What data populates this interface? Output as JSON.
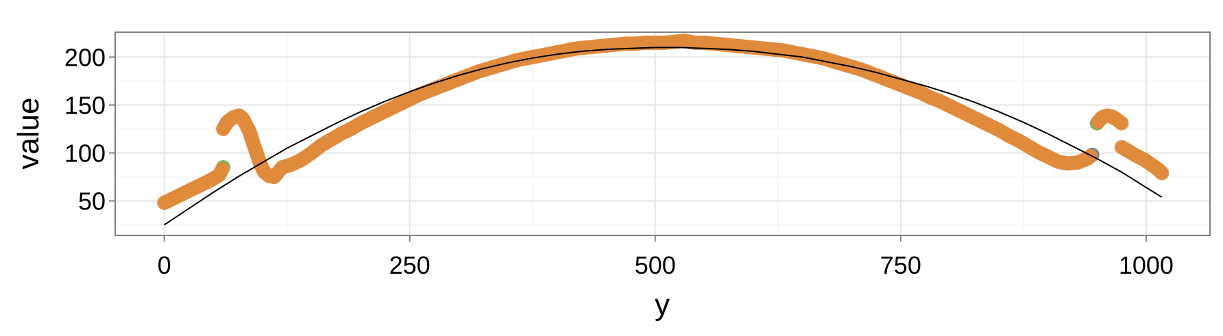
{
  "colors": {
    "panel_background": "#ffffff",
    "panel_border": "#7f7f7f",
    "grid_major": "#e6e6e6",
    "grid_minor": "#f4f4f4",
    "fit_line": "#000000",
    "point_main": "#e08a3c",
    "point_accents": [
      "#5b9bd5",
      "#6aaa45",
      "#c9302c",
      "#f2a2a8",
      "#c9dd78",
      "#9ecf8f",
      "#4a6fa5"
    ]
  },
  "chart_data": {
    "type": "scatter",
    "title": "",
    "xlabel": "y",
    "ylabel": "value",
    "xlim": [
      -50,
      1065
    ],
    "ylim": [
      14,
      226
    ],
    "x_ticks": [
      0,
      250,
      500,
      750,
      1000
    ],
    "x_tick_labels": [
      "0",
      "250",
      "500",
      "750",
      "1000"
    ],
    "y_ticks": [
      50,
      100,
      150,
      200
    ],
    "y_tick_labels": [
      "50",
      "100",
      "150",
      "200"
    ],
    "grid": true,
    "legend": "none",
    "points": [
      {
        "x": 0,
        "y": 48
      },
      {
        "x": 8,
        "y": 52
      },
      {
        "x": 16,
        "y": 56
      },
      {
        "x": 24,
        "y": 60
      },
      {
        "x": 32,
        "y": 64
      },
      {
        "x": 40,
        "y": 68
      },
      {
        "x": 48,
        "y": 72
      },
      {
        "x": 56,
        "y": 77
      },
      {
        "x": 60,
        "y": 85,
        "color": "#6aaa45"
      },
      {
        "x": 60,
        "y": 125
      },
      {
        "x": 64,
        "y": 132
      },
      {
        "x": 70,
        "y": 137
      },
      {
        "x": 76,
        "y": 139
      },
      {
        "x": 80,
        "y": 136,
        "color": "#f2a2a8"
      },
      {
        "x": 84,
        "y": 128,
        "color": "#c9dd78"
      },
      {
        "x": 87,
        "y": 122,
        "color": "#f2a2a8"
      },
      {
        "x": 89,
        "y": 115,
        "color": "#c9302c"
      },
      {
        "x": 92,
        "y": 106,
        "color": "#9ecf8f"
      },
      {
        "x": 95,
        "y": 97,
        "color": "#6aaa45"
      },
      {
        "x": 98,
        "y": 88
      },
      {
        "x": 102,
        "y": 80
      },
      {
        "x": 107,
        "y": 76
      },
      {
        "x": 112,
        "y": 75
      },
      {
        "x": 120,
        "y": 85
      },
      {
        "x": 130,
        "y": 88
      },
      {
        "x": 140,
        "y": 93
      },
      {
        "x": 150,
        "y": 100
      },
      {
        "x": 160,
        "y": 108
      },
      {
        "x": 170,
        "y": 114
      },
      {
        "x": 180,
        "y": 120
      },
      {
        "x": 190,
        "y": 125
      },
      {
        "x": 200,
        "y": 131
      },
      {
        "x": 210,
        "y": 136
      },
      {
        "x": 220,
        "y": 141
      },
      {
        "x": 230,
        "y": 146
      },
      {
        "x": 240,
        "y": 151
      },
      {
        "x": 250,
        "y": 156
      },
      {
        "x": 260,
        "y": 161
      },
      {
        "x": 270,
        "y": 165
      },
      {
        "x": 280,
        "y": 169
      },
      {
        "x": 290,
        "y": 173
      },
      {
        "x": 300,
        "y": 177
      },
      {
        "x": 310,
        "y": 181
      },
      {
        "x": 320,
        "y": 185
      },
      {
        "x": 330,
        "y": 188
      },
      {
        "x": 340,
        "y": 191
      },
      {
        "x": 350,
        "y": 194
      },
      {
        "x": 360,
        "y": 197
      },
      {
        "x": 370,
        "y": 199
      },
      {
        "x": 380,
        "y": 201
      },
      {
        "x": 390,
        "y": 203
      },
      {
        "x": 400,
        "y": 205
      },
      {
        "x": 410,
        "y": 207
      },
      {
        "x": 420,
        "y": 209
      },
      {
        "x": 430,
        "y": 210
      },
      {
        "x": 440,
        "y": 211
      },
      {
        "x": 450,
        "y": 212
      },
      {
        "x": 460,
        "y": 213
      },
      {
        "x": 470,
        "y": 214
      },
      {
        "x": 480,
        "y": 214
      },
      {
        "x": 490,
        "y": 215
      },
      {
        "x": 500,
        "y": 215
      },
      {
        "x": 510,
        "y": 215
      },
      {
        "x": 520,
        "y": 216
      },
      {
        "x": 530,
        "y": 217
      },
      {
        "x": 540,
        "y": 215
      },
      {
        "x": 550,
        "y": 215
      },
      {
        "x": 560,
        "y": 214
      },
      {
        "x": 570,
        "y": 213
      },
      {
        "x": 580,
        "y": 212
      },
      {
        "x": 590,
        "y": 211
      },
      {
        "x": 600,
        "y": 210
      },
      {
        "x": 610,
        "y": 209
      },
      {
        "x": 620,
        "y": 208
      },
      {
        "x": 630,
        "y": 207
      },
      {
        "x": 640,
        "y": 205
      },
      {
        "x": 650,
        "y": 203
      },
      {
        "x": 660,
        "y": 201
      },
      {
        "x": 670,
        "y": 199
      },
      {
        "x": 680,
        "y": 196
      },
      {
        "x": 690,
        "y": 193
      },
      {
        "x": 700,
        "y": 190
      },
      {
        "x": 710,
        "y": 187
      },
      {
        "x": 720,
        "y": 183
      },
      {
        "x": 730,
        "y": 179
      },
      {
        "x": 740,
        "y": 175
      },
      {
        "x": 750,
        "y": 171
      },
      {
        "x": 760,
        "y": 167
      },
      {
        "x": 770,
        "y": 163
      },
      {
        "x": 780,
        "y": 158
      },
      {
        "x": 790,
        "y": 154
      },
      {
        "x": 800,
        "y": 149
      },
      {
        "x": 810,
        "y": 144
      },
      {
        "x": 820,
        "y": 139
      },
      {
        "x": 830,
        "y": 134
      },
      {
        "x": 840,
        "y": 129
      },
      {
        "x": 850,
        "y": 124
      },
      {
        "x": 860,
        "y": 118
      },
      {
        "x": 870,
        "y": 113
      },
      {
        "x": 880,
        "y": 107
      },
      {
        "x": 890,
        "y": 101
      },
      {
        "x": 900,
        "y": 96
      },
      {
        "x": 910,
        "y": 91
      },
      {
        "x": 920,
        "y": 89
      },
      {
        "x": 930,
        "y": 90
      },
      {
        "x": 940,
        "y": 94
      },
      {
        "x": 945,
        "y": 98,
        "color": "#4a6fa5"
      },
      {
        "x": 950,
        "y": 131,
        "color": "#6aaa45"
      },
      {
        "x": 955,
        "y": 137
      },
      {
        "x": 960,
        "y": 139
      },
      {
        "x": 965,
        "y": 138
      },
      {
        "x": 970,
        "y": 135
      },
      {
        "x": 975,
        "y": 131
      },
      {
        "x": 975,
        "y": 106
      },
      {
        "x": 982,
        "y": 102
      },
      {
        "x": 990,
        "y": 97
      },
      {
        "x": 998,
        "y": 93
      },
      {
        "x": 1005,
        "y": 88
      },
      {
        "x": 1012,
        "y": 83
      },
      {
        "x": 1016,
        "y": 79
      }
    ],
    "fit_curve": [
      {
        "x": 0,
        "y": 25
      },
      {
        "x": 25,
        "y": 42
      },
      {
        "x": 50,
        "y": 59
      },
      {
        "x": 75,
        "y": 75
      },
      {
        "x": 100,
        "y": 90
      },
      {
        "x": 125,
        "y": 105
      },
      {
        "x": 150,
        "y": 118
      },
      {
        "x": 175,
        "y": 131
      },
      {
        "x": 200,
        "y": 143
      },
      {
        "x": 225,
        "y": 154
      },
      {
        "x": 250,
        "y": 164
      },
      {
        "x": 275,
        "y": 173
      },
      {
        "x": 300,
        "y": 181
      },
      {
        "x": 325,
        "y": 188
      },
      {
        "x": 350,
        "y": 194
      },
      {
        "x": 375,
        "y": 199
      },
      {
        "x": 400,
        "y": 203
      },
      {
        "x": 425,
        "y": 206
      },
      {
        "x": 450,
        "y": 208
      },
      {
        "x": 475,
        "y": 209
      },
      {
        "x": 500,
        "y": 210
      },
      {
        "x": 525,
        "y": 210
      },
      {
        "x": 550,
        "y": 209
      },
      {
        "x": 575,
        "y": 208
      },
      {
        "x": 600,
        "y": 206
      },
      {
        "x": 625,
        "y": 203
      },
      {
        "x": 650,
        "y": 200
      },
      {
        "x": 675,
        "y": 195
      },
      {
        "x": 700,
        "y": 190
      },
      {
        "x": 725,
        "y": 184
      },
      {
        "x": 750,
        "y": 177
      },
      {
        "x": 775,
        "y": 170
      },
      {
        "x": 800,
        "y": 162
      },
      {
        "x": 825,
        "y": 153
      },
      {
        "x": 850,
        "y": 143
      },
      {
        "x": 875,
        "y": 132
      },
      {
        "x": 900,
        "y": 120
      },
      {
        "x": 925,
        "y": 107
      },
      {
        "x": 950,
        "y": 94
      },
      {
        "x": 975,
        "y": 80
      },
      {
        "x": 1000,
        "y": 64
      },
      {
        "x": 1016,
        "y": 54
      }
    ]
  }
}
